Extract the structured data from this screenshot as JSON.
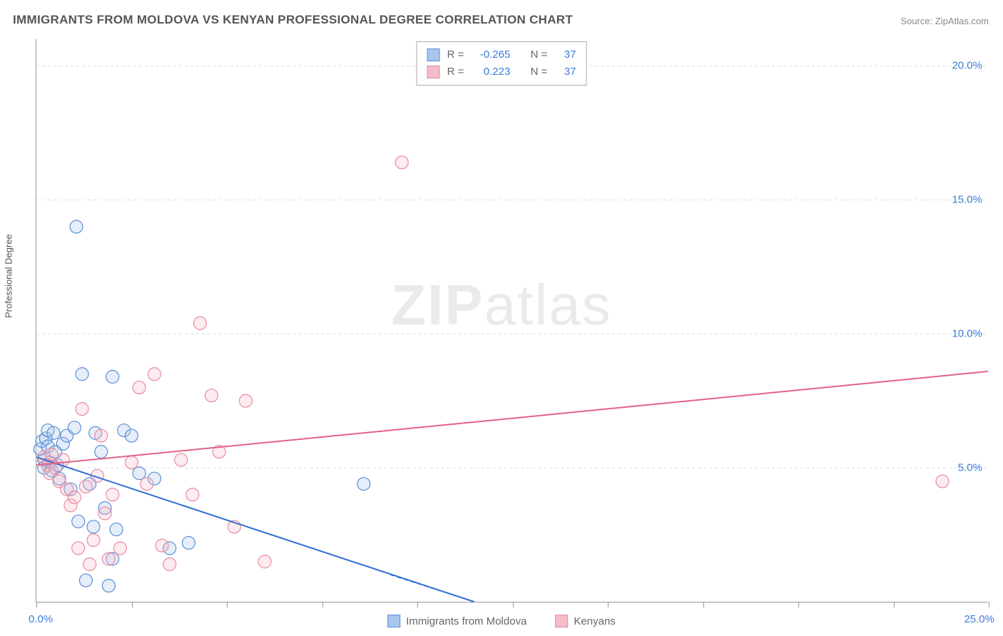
{
  "title": "IMMIGRANTS FROM MOLDOVA VS KENYAN PROFESSIONAL DEGREE CORRELATION CHART",
  "source": "Source: ZipAtlas.com",
  "ylabel": "Professional Degree",
  "watermark": {
    "bold": "ZIP",
    "rest": "atlas"
  },
  "chart": {
    "type": "scatter",
    "xlim": [
      0,
      25
    ],
    "ylim": [
      0,
      21
    ],
    "xtick_step": 2.5,
    "ytick_step": 5,
    "y_tick_labels": [
      {
        "v": 5,
        "t": "5.0%"
      },
      {
        "v": 10,
        "t": "10.0%"
      },
      {
        "v": 15,
        "t": "15.0%"
      },
      {
        "v": 20,
        "t": "20.0%"
      }
    ],
    "x_min_label": "0.0%",
    "x_max_label": "25.0%",
    "background_color": "#ffffff",
    "grid_color": "#dddddd",
    "axis_color": "#999999",
    "tick_label_color": "#3b7dd8",
    "marker_radius": 9,
    "marker_stroke_width": 1.2,
    "marker_fill_opacity": 0.3,
    "line_width": 2,
    "series": [
      {
        "name": "Immigrants from Moldova",
        "color_stroke": "#5a8fd6",
        "color_fill": "#a9c6ec",
        "line_color": "#2f6fd0",
        "R": "-0.265",
        "N": "37",
        "trend": {
          "x1": 0,
          "y1": 5.4,
          "x2": 11.5,
          "y2": 0
        },
        "points": [
          [
            0.1,
            5.7
          ],
          [
            0.15,
            6.0
          ],
          [
            0.2,
            5.3
          ],
          [
            0.2,
            5.0
          ],
          [
            0.25,
            6.1
          ],
          [
            0.3,
            5.8
          ],
          [
            0.3,
            6.4
          ],
          [
            0.35,
            5.2
          ],
          [
            0.4,
            4.9
          ],
          [
            0.45,
            6.3
          ],
          [
            0.5,
            5.6
          ],
          [
            0.55,
            5.1
          ],
          [
            0.6,
            4.6
          ],
          [
            0.7,
            5.9
          ],
          [
            0.8,
            6.2
          ],
          [
            0.9,
            4.2
          ],
          [
            1.0,
            6.5
          ],
          [
            1.05,
            14.0
          ],
          [
            1.1,
            3.0
          ],
          [
            1.2,
            8.5
          ],
          [
            1.3,
            0.8
          ],
          [
            1.4,
            4.4
          ],
          [
            1.5,
            2.8
          ],
          [
            1.55,
            6.3
          ],
          [
            1.7,
            5.6
          ],
          [
            1.8,
            3.5
          ],
          [
            1.9,
            0.6
          ],
          [
            2.0,
            8.4
          ],
          [
            2.1,
            2.7
          ],
          [
            2.3,
            6.4
          ],
          [
            2.5,
            6.2
          ],
          [
            2.7,
            4.8
          ],
          [
            3.1,
            4.6
          ],
          [
            3.5,
            2.0
          ],
          [
            4.0,
            2.2
          ],
          [
            8.6,
            4.4
          ],
          [
            2.0,
            1.6
          ]
        ]
      },
      {
        "name": "Kenyans",
        "color_stroke": "#e88ba0",
        "color_fill": "#f5bcc9",
        "line_color": "#e26384",
        "R": "0.223",
        "N": "37",
        "trend": {
          "x1": 0,
          "y1": 5.1,
          "x2": 25,
          "y2": 8.6
        },
        "points": [
          [
            0.2,
            5.4
          ],
          [
            0.3,
            5.1
          ],
          [
            0.35,
            4.8
          ],
          [
            0.4,
            5.5
          ],
          [
            0.5,
            5.0
          ],
          [
            0.6,
            4.5
          ],
          [
            0.7,
            5.3
          ],
          [
            0.8,
            4.2
          ],
          [
            0.9,
            3.6
          ],
          [
            1.0,
            3.9
          ],
          [
            1.1,
            2.0
          ],
          [
            1.2,
            7.2
          ],
          [
            1.3,
            4.3
          ],
          [
            1.4,
            1.4
          ],
          [
            1.5,
            2.3
          ],
          [
            1.6,
            4.7
          ],
          [
            1.7,
            6.2
          ],
          [
            1.8,
            3.3
          ],
          [
            1.9,
            1.6
          ],
          [
            2.0,
            4.0
          ],
          [
            2.2,
            2.0
          ],
          [
            2.5,
            5.2
          ],
          [
            2.7,
            8.0
          ],
          [
            2.9,
            4.4
          ],
          [
            3.1,
            8.5
          ],
          [
            3.3,
            2.1
          ],
          [
            3.5,
            1.4
          ],
          [
            3.8,
            5.3
          ],
          [
            4.1,
            4.0
          ],
          [
            4.3,
            10.4
          ],
          [
            4.6,
            7.7
          ],
          [
            4.8,
            5.6
          ],
          [
            5.2,
            2.8
          ],
          [
            5.5,
            7.5
          ],
          [
            6.0,
            1.5
          ],
          [
            9.6,
            16.4
          ],
          [
            23.8,
            4.5
          ]
        ]
      }
    ]
  },
  "legend_bottom": [
    {
      "label": "Immigrants from Moldova",
      "stroke": "#5a8fd6",
      "fill": "#a9c6ec"
    },
    {
      "label": "Kenyans",
      "stroke": "#e88ba0",
      "fill": "#f5bcc9"
    }
  ]
}
